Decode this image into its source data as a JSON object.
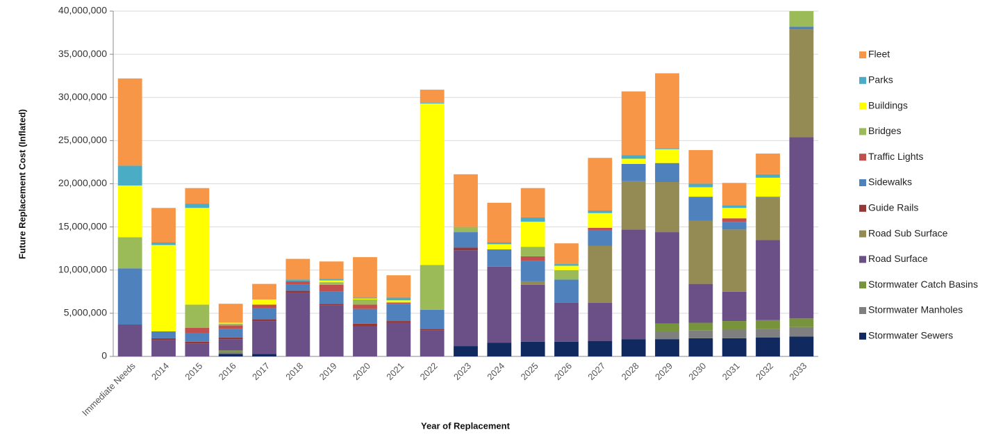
{
  "chart_data": {
    "type": "stacked-bar",
    "x_label": "Year of Replacement",
    "y_label": "Future Replacement Cost (Inflated)",
    "categories": [
      "Immediate Needs",
      "2014",
      "2015",
      "2016",
      "2017",
      "2018",
      "2019",
      "2020",
      "2021",
      "2022",
      "2023",
      "2024",
      "2025",
      "2026",
      "2027",
      "2028",
      "2029",
      "2030",
      "2031",
      "2032",
      "2033"
    ],
    "ylim": [
      0,
      40000000
    ],
    "yticks": [
      {
        "value": 0,
        "label": "0"
      },
      {
        "value": 5000000,
        "label": "5,000,000"
      },
      {
        "value": 10000000,
        "label": "10,000,000"
      },
      {
        "value": 15000000,
        "label": "15,000,000"
      },
      {
        "value": 20000000,
        "label": "20,000,000"
      },
      {
        "value": 25000000,
        "label": "25,000,000"
      },
      {
        "value": 30000000,
        "label": "30,000,000"
      },
      {
        "value": 35000000,
        "label": "35,000,000"
      },
      {
        "value": 40000000,
        "label": "40,000,000"
      }
    ],
    "grid": true,
    "legend_position": "right",
    "series": [
      {
        "name": "Stormwater Sewers",
        "color": "#10295e",
        "values": [
          0,
          0,
          0,
          300000,
          300000,
          0,
          0,
          0,
          0,
          0,
          1200000,
          1600000,
          1700000,
          1700000,
          1800000,
          2000000,
          2000000,
          2100000,
          2100000,
          2200000,
          2300000
        ]
      },
      {
        "name": "Stormwater Manholes",
        "color": "#7f7f7f",
        "values": [
          0,
          0,
          0,
          200000,
          0,
          0,
          0,
          0,
          0,
          0,
          0,
          0,
          0,
          0,
          0,
          0,
          900000,
          900000,
          1000000,
          1000000,
          1100000
        ]
      },
      {
        "name": "Stormwater Catch Basins",
        "color": "#77933c",
        "values": [
          0,
          0,
          0,
          200000,
          0,
          0,
          0,
          0,
          0,
          0,
          0,
          0,
          0,
          0,
          0,
          0,
          900000,
          900000,
          1000000,
          1000000,
          1000000
        ]
      },
      {
        "name": "Road Surface",
        "color": "#6b4f87",
        "values": [
          3700000,
          1900000,
          1500000,
          1300000,
          3800000,
          7400000,
          5900000,
          3500000,
          3900000,
          3000000,
          11100000,
          8800000,
          6600000,
          4500000,
          4400000,
          12700000,
          10600000,
          4500000,
          3400000,
          9300000,
          21000000
        ]
      },
      {
        "name": "Road Sub Surface",
        "color": "#948a54",
        "values": [
          0,
          0,
          0,
          0,
          0,
          0,
          0,
          0,
          0,
          0,
          0,
          0,
          400000,
          0,
          6600000,
          5600000,
          5800000,
          7300000,
          7200000,
          4900000,
          12500000
        ]
      },
      {
        "name": "Guide Rails",
        "color": "#953735",
        "values": [
          0,
          200000,
          200000,
          200000,
          200000,
          200000,
          200000,
          300000,
          200000,
          200000,
          300000,
          0,
          0,
          0,
          0,
          0,
          0,
          0,
          0,
          0,
          0
        ]
      },
      {
        "name": "Sidewalks",
        "color": "#4f81bd",
        "values": [
          6500000,
          800000,
          1000000,
          1000000,
          1300000,
          700000,
          1400000,
          1700000,
          2000000,
          2200000,
          1800000,
          2000000,
          2400000,
          2700000,
          1800000,
          2000000,
          2200000,
          2800000,
          900000,
          100000,
          300000
        ]
      },
      {
        "name": "Traffic Lights",
        "color": "#c0504d",
        "values": [
          0,
          0,
          600000,
          400000,
          400000,
          400000,
          800000,
          500000,
          100000,
          0,
          0,
          0,
          500000,
          0,
          300000,
          0,
          0,
          0,
          400000,
          0,
          0
        ]
      },
      {
        "name": "Bridges",
        "color": "#9bbb59",
        "values": [
          3600000,
          0,
          2700000,
          200000,
          0,
          0,
          300000,
          600000,
          100000,
          5200000,
          600000,
          0,
          1100000,
          1100000,
          0,
          0,
          0,
          0,
          0,
          0,
          1800000
        ]
      },
      {
        "name": "Buildings",
        "color": "#ffff00",
        "values": [
          6000000,
          10000000,
          11200000,
          100000,
          600000,
          0,
          200000,
          100000,
          200000,
          18700000,
          0,
          600000,
          2900000,
          500000,
          1700000,
          600000,
          1600000,
          1100000,
          1200000,
          2200000,
          0
        ]
      },
      {
        "name": "Parks",
        "color": "#4bacc6",
        "values": [
          2300000,
          300000,
          500000,
          0,
          0,
          200000,
          200000,
          100000,
          300000,
          100000,
          0,
          200000,
          500000,
          200000,
          300000,
          400000,
          100000,
          400000,
          300000,
          400000,
          0
        ]
      },
      {
        "name": "Fleet",
        "color": "#f79646",
        "values": [
          10100000,
          4000000,
          1800000,
          2200000,
          1800000,
          2400000,
          2000000,
          4700000,
          2600000,
          1500000,
          6100000,
          4600000,
          3400000,
          2400000,
          6100000,
          7400000,
          8700000,
          3900000,
          2600000,
          2400000,
          0
        ]
      }
    ]
  }
}
